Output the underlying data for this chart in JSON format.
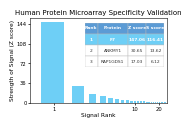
{
  "title": "Human Protein Microarray Specificity Validation",
  "xlabel": "Signal Rank",
  "ylabel": "Strength of Signal (Z score)",
  "bar_color": "#6ecff6",
  "highlight_color": "#6ecff6",
  "table_header_bg": "#5b9bd5",
  "table_row1_bg": "#6ecff6",
  "table_row_bg": "#ffffff",
  "table_header_fc": "#ffffff",
  "table_row1_fc": "#ffffff",
  "table_row_fc": "#333333",
  "ylim": [
    0,
    155
  ],
  "yticks": [
    0,
    36,
    72,
    108,
    144
  ],
  "table_data": [
    [
      "Rank",
      "Protein",
      "Z score",
      "S score"
    ],
    [
      "1",
      "F7",
      "147.06",
      "116.41"
    ],
    [
      "2",
      "ANKMY1",
      "30.65",
      "13.62"
    ],
    [
      "3",
      "RAP1GDS1",
      "17.03",
      "6.12"
    ]
  ],
  "bar_values": [
    147.06,
    30.65,
    17.03,
    12.5,
    9.8,
    7.5,
    6.2,
    5.1,
    4.5,
    4.0,
    3.6,
    3.3,
    3.0,
    2.8,
    2.6,
    2.4,
    2.2,
    2.1,
    2.0,
    1.9,
    1.8,
    1.75,
    1.7,
    1.65,
    1.6
  ],
  "title_fontsize": 5.0,
  "axis_fontsize": 4.2,
  "tick_fontsize": 3.8,
  "table_fontsize": 3.2
}
